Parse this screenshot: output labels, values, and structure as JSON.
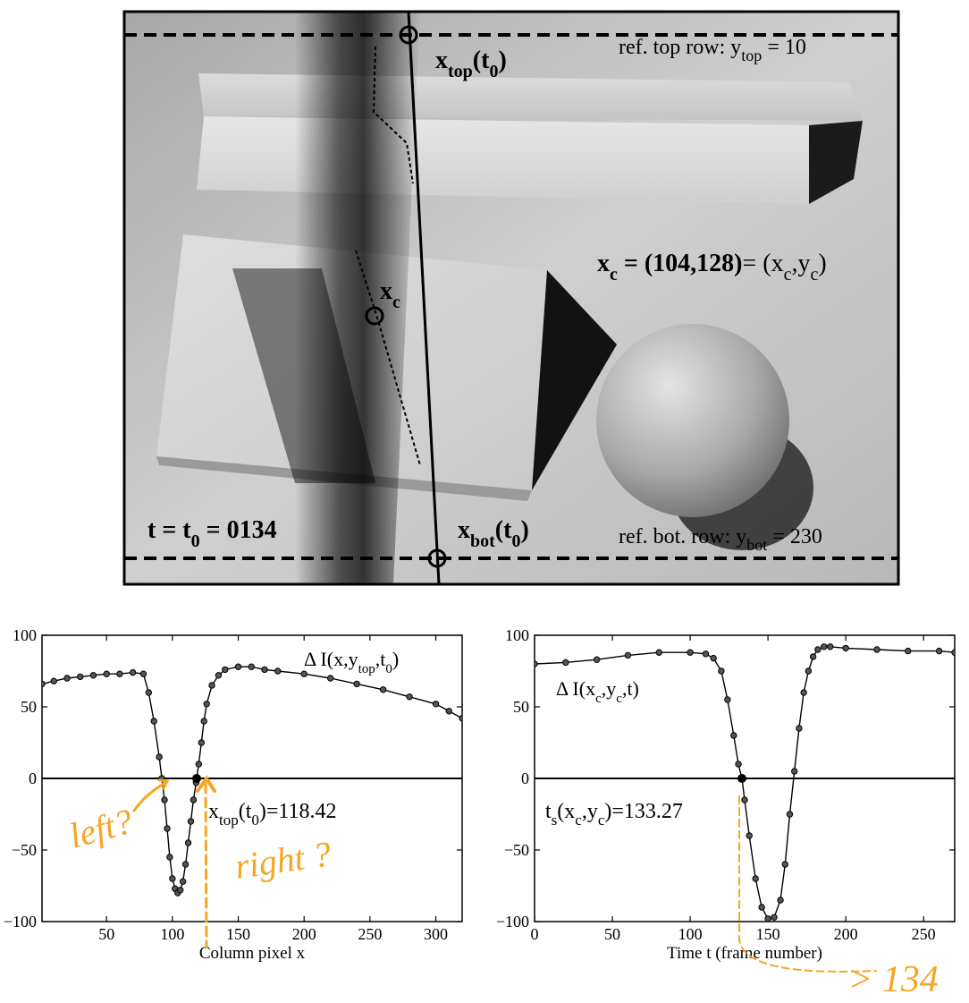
{
  "photo": {
    "top_label": "x",
    "top_label_sub": "top",
    "top_label_arg": "(t",
    "top_label_arg_sub": "0",
    "top_label_close": ")",
    "ref_top": "ref. top row: y",
    "ref_top_sub": "top",
    "ref_top_val": " = 10",
    "xc_eq_lhs": "x",
    "xc_eq_lhs_sub": "c",
    "xc_eq_mid": " = (104,128)",
    "xc_eq_rhs": "= (x",
    "xc_eq_rhs_sub1": "c",
    "xc_eq_rhs_mid": ",y",
    "xc_eq_rhs_sub2": "c",
    "xc_eq_rhs_close": ")",
    "xc_point": "x",
    "xc_point_sub": "c",
    "time_label": "t = t",
    "time_label_sub": "0",
    "time_label_val": " = 0134",
    "bot_label": "x",
    "bot_label_sub": "bot",
    "bot_label_arg": "(t",
    "bot_label_arg_sub": "0",
    "bot_label_close": ")",
    "ref_bot": "ref. bot. row: y",
    "ref_bot_sub": "bot",
    "ref_bot_val": " = 230"
  },
  "chart_data": [
    {
      "type": "line",
      "xlabel": "Column pixel x",
      "ylabel": "",
      "xlim": [
        1,
        320
      ],
      "ylim": [
        -100,
        100
      ],
      "xticks": [
        50,
        100,
        150,
        200,
        250,
        300
      ],
      "yticks": [
        100,
        50,
        0,
        -50,
        -100
      ],
      "legend": "ΔI(x,y_top,t_0)",
      "legend_parts": [
        "Δ I(x,y",
        "top",
        ",t",
        "0",
        ")"
      ],
      "series": [
        {
          "x": [
            1,
            10,
            20,
            30,
            40,
            50,
            60,
            70,
            78,
            82,
            86,
            90,
            92,
            94,
            96,
            98,
            100,
            102,
            104,
            106,
            108,
            110,
            112,
            114,
            116,
            118,
            118.42,
            120,
            122,
            124,
            126,
            130,
            135,
            140,
            150,
            160,
            170,
            180,
            200,
            220,
            240,
            260,
            280,
            300,
            310,
            320
          ],
          "y": [
            66,
            68,
            70,
            71,
            72,
            73,
            73,
            74,
            73,
            60,
            40,
            15,
            0,
            -15,
            -35,
            -55,
            -70,
            -77,
            -80,
            -78,
            -72,
            -60,
            -45,
            -30,
            -15,
            -3,
            0,
            10,
            25,
            40,
            52,
            65,
            72,
            76,
            78,
            78,
            76,
            75,
            73,
            70,
            66,
            62,
            57,
            52,
            47,
            42
          ]
        }
      ],
      "annotation": "x_top(t_0)=118.42",
      "annotation_parts": [
        "x",
        "top",
        "(t",
        "0",
        ")=118.42"
      ]
    },
    {
      "type": "line",
      "xlabel": "Time t (frame number)",
      "ylabel": "",
      "xlim": [
        0,
        270
      ],
      "ylim": [
        -100,
        100
      ],
      "xticks": [
        0,
        50,
        100,
        150,
        200,
        250
      ],
      "yticks": [
        100,
        50,
        0,
        -50,
        -100
      ],
      "legend": "ΔI(x_c,y_c,t)",
      "legend_parts": [
        "Δ I(x",
        "c",
        ",y",
        "c",
        ",t)"
      ],
      "series": [
        {
          "x": [
            0,
            20,
            40,
            60,
            80,
            100,
            110,
            115,
            120,
            124,
            128,
            131,
            133.27,
            135,
            138,
            142,
            146,
            150,
            154,
            158,
            161,
            164,
            167,
            170,
            173,
            176,
            179,
            182,
            186,
            190,
            200,
            220,
            240,
            260,
            270
          ],
          "y": [
            80,
            81,
            83,
            86,
            88,
            88,
            87,
            84,
            75,
            55,
            30,
            10,
            0,
            -15,
            -40,
            -70,
            -90,
            -98,
            -97,
            -85,
            -60,
            -25,
            5,
            35,
            60,
            75,
            85,
            90,
            92,
            92,
            91,
            90,
            89,
            89,
            88
          ]
        }
      ],
      "annotation": "t_s(x_c,y_c)=133.27",
      "annotation_parts": [
        "t",
        "s",
        "(x",
        "c",
        ",y",
        "c",
        ")=133.27"
      ]
    }
  ],
  "handwriting": {
    "left_note": "left?",
    "right_note": "right ?",
    "frame_note": "> 134"
  },
  "colors": {
    "ink": "#000000",
    "handwriting": "#f5a623",
    "photo_bg": "#bdbdbd"
  }
}
